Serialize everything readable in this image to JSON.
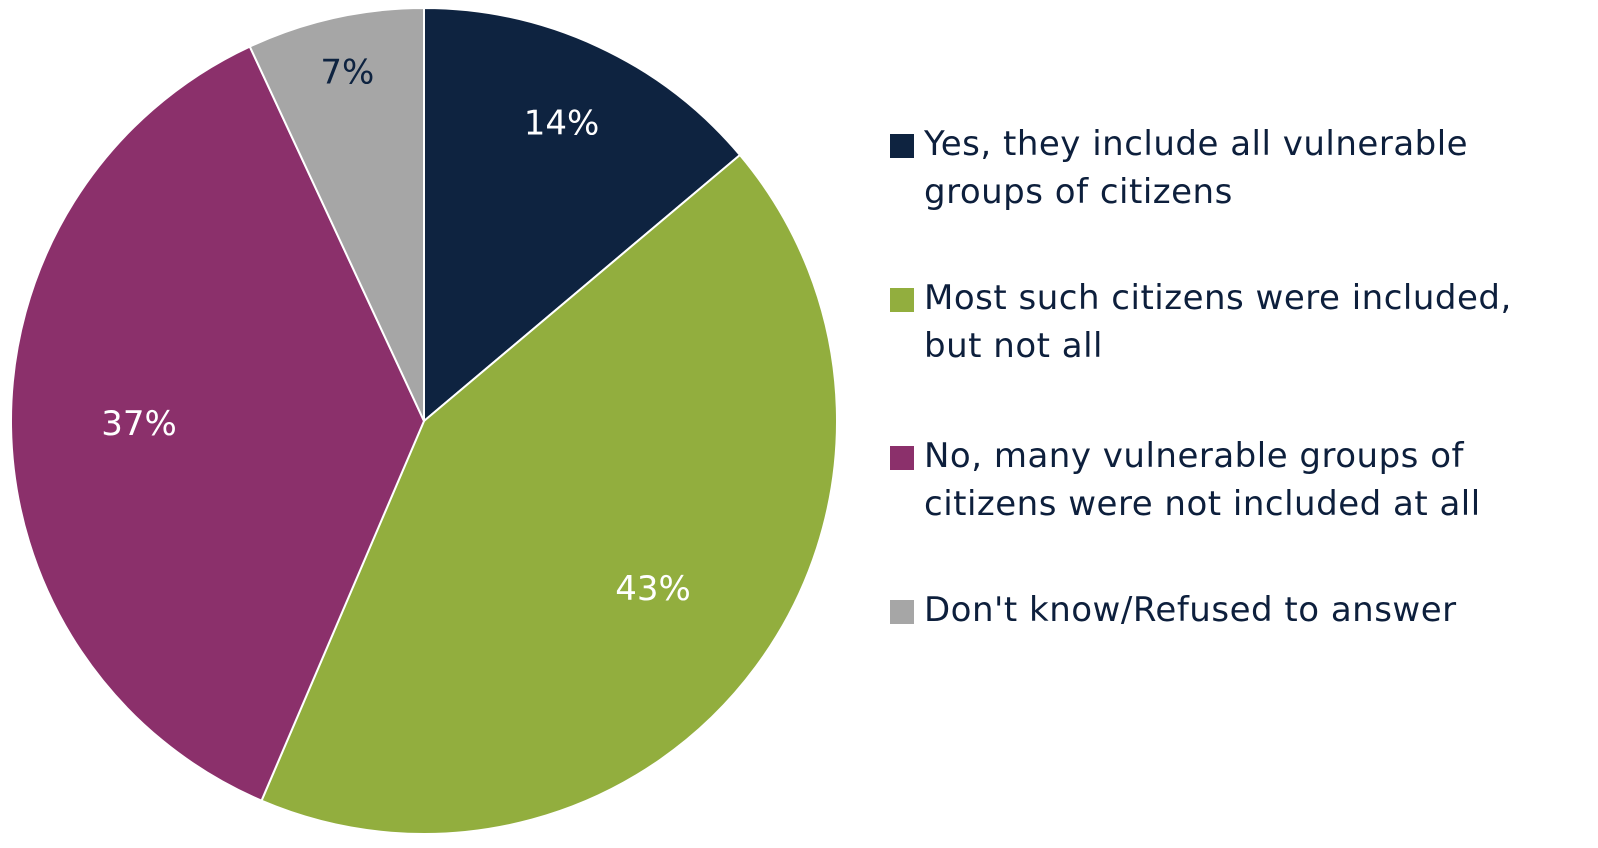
{
  "chart_data": {
    "type": "pie",
    "categories": [
      "Yes, they include all vulnerable groups of citizens",
      "Most such citizens were included, but not all",
      "No, many vulnerable groups of citizens were not included at all",
      "Don't know/Refused to answer"
    ],
    "values": [
      14,
      43,
      37,
      7
    ],
    "data_labels": [
      "14%",
      "43%",
      "37%",
      "7%"
    ],
    "colors": [
      "#0e2340",
      "#92ae3e",
      "#8b306b",
      "#a6a6a6"
    ],
    "label_colors": [
      "#ffffff",
      "#ffffff",
      "#ffffff",
      "#0e2340"
    ],
    "start_angle_deg": 0,
    "direction": "clockwise",
    "legend_placement": "right",
    "title": ""
  }
}
